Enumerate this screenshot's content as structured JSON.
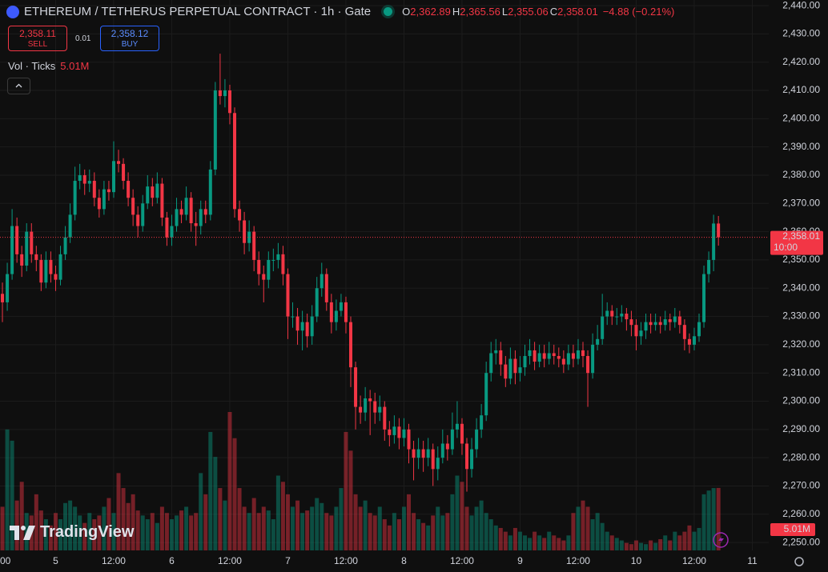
{
  "chart_data": {
    "type": "candlestick",
    "title": "ETHEREUM / TETHERUS PERPETUAL CONTRACT · 1h · Gate",
    "ohlc_legend": [
      {
        "key": "O",
        "value": "2,362.89"
      },
      {
        "key": "H",
        "value": "2,365.56"
      },
      {
        "key": "L",
        "value": "2,355.06"
      },
      {
        "key": "C",
        "value": "2,358.01"
      }
    ],
    "change": "−4.88 (−0.21%)",
    "trade": {
      "sell_price": "2,358.11",
      "sell": "SELL",
      "spread": "0.01",
      "buy_price": "2,358.12",
      "buy": "BUY"
    },
    "volume_indicator": {
      "title": "Vol · Ticks",
      "value": "5.01M"
    },
    "branding": "TradingView",
    "up_color": "#089981",
    "down_color": "#f23645",
    "grid": true,
    "open": [
      2338,
      2335,
      2345,
      2362,
      2352,
      2348,
      2360,
      2352,
      2350,
      2342,
      2350,
      2345,
      2343,
      2352,
      2358,
      2366,
      2378,
      2380,
      2377,
      2378,
      2372,
      2368,
      2375,
      2374,
      2385,
      2384,
      2378,
      2372,
      2366,
      2362,
      2370,
      2376,
      2372,
      2377,
      2365,
      2358,
      2362,
      2368,
      2366,
      2372,
      2363,
      2362,
      2368,
      2366,
      2382,
      2410,
      2408,
      2410,
      2402,
      2368,
      2364,
      2356,
      2360,
      2350,
      2345,
      2343,
      2350,
      2350,
      2352,
      2345,
      2330,
      2330,
      2325,
      2328,
      2323,
      2330,
      2340,
      2345,
      2335,
      2328,
      2332,
      2335,
      2328,
      2312,
      2298,
      2296,
      2301,
      2300,
      2296,
      2298,
      2290,
      2288,
      2291,
      2287,
      2290,
      2283,
      2280,
      2283,
      2280,
      2283,
      2276,
      2280,
      2285,
      2283,
      2290,
      2292,
      2285,
      2276,
      2283,
      2290,
      2295,
      2310,
      2317,
      2318,
      2313,
      2308,
      2315,
      2310,
      2312,
      2316,
      2318,
      2314,
      2317,
      2315,
      2317,
      2316,
      2315,
      2313,
      2317,
      2315,
      2318,
      2316,
      2310,
      2320,
      2322,
      2330,
      2332,
      2330,
      2330,
      2331,
      2329,
      2327,
      2323,
      2325,
      2328,
      2327,
      2328,
      2327,
      2329,
      2328,
      2330,
      2327,
      2322,
      2320,
      2323,
      2328,
      2345,
      2350,
      2362.89
    ],
    "high": [
      2342,
      2349,
      2368,
      2365,
      2355,
      2363,
      2363,
      2355,
      2352,
      2353,
      2353,
      2348,
      2355,
      2362,
      2370,
      2383,
      2384,
      2382,
      2382,
      2381,
      2375,
      2378,
      2378,
      2392,
      2389,
      2386,
      2381,
      2375,
      2369,
      2373,
      2380,
      2379,
      2381,
      2379,
      2367,
      2366,
      2372,
      2371,
      2376,
      2374,
      2367,
      2371,
      2371,
      2385,
      2413,
      2423,
      2414,
      2412,
      2404,
      2371,
      2367,
      2364,
      2362,
      2353,
      2348,
      2353,
      2354,
      2356,
      2355,
      2347,
      2335,
      2333,
      2332,
      2331,
      2334,
      2344,
      2349,
      2347,
      2338,
      2336,
      2338,
      2337,
      2330,
      2314,
      2302,
      2305,
      2304,
      2303,
      2302,
      2300,
      2293,
      2295,
      2294,
      2294,
      2292,
      2286,
      2287,
      2286,
      2287,
      2285,
      2284,
      2290,
      2288,
      2296,
      2300,
      2294,
      2287,
      2287,
      2294,
      2299,
      2314,
      2321,
      2322,
      2321,
      2316,
      2319,
      2318,
      2316,
      2320,
      2322,
      2321,
      2320,
      2320,
      2321,
      2320,
      2319,
      2318,
      2320,
      2320,
      2322,
      2321,
      2318,
      2324,
      2327,
      2338,
      2335,
      2334,
      2333,
      2334,
      2333,
      2332,
      2329,
      2328,
      2331,
      2331,
      2331,
      2330,
      2332,
      2331,
      2333,
      2332,
      2329,
      2324,
      2326,
      2331,
      2348,
      2353,
      2366,
      2365.56
    ],
    "low": [
      2328,
      2332,
      2343,
      2349,
      2344,
      2346,
      2349,
      2346,
      2339,
      2340,
      2342,
      2339,
      2341,
      2350,
      2356,
      2364,
      2375,
      2373,
      2374,
      2369,
      2365,
      2366,
      2371,
      2372,
      2381,
      2375,
      2369,
      2362,
      2358,
      2360,
      2368,
      2369,
      2370,
      2362,
      2355,
      2355,
      2360,
      2363,
      2364,
      2360,
      2355,
      2359,
      2363,
      2364,
      2380,
      2405,
      2404,
      2398,
      2365,
      2360,
      2352,
      2353,
      2346,
      2341,
      2335,
      2340,
      2346,
      2347,
      2341,
      2322,
      2326,
      2320,
      2318,
      2319,
      2320,
      2328,
      2337,
      2332,
      2324,
      2325,
      2330,
      2324,
      2305,
      2290,
      2292,
      2293,
      2288,
      2292,
      2293,
      2286,
      2284,
      2285,
      2283,
      2284,
      2278,
      2272,
      2276,
      2275,
      2277,
      2270,
      2272,
      2278,
      2279,
      2281,
      2287,
      2281,
      2268,
      2273,
      2280,
      2287,
      2293,
      2307,
      2313,
      2309,
      2305,
      2306,
      2306,
      2307,
      2309,
      2313,
      2311,
      2312,
      2312,
      2313,
      2313,
      2312,
      2310,
      2311,
      2312,
      2313,
      2312,
      2298,
      2308,
      2318,
      2320,
      2327,
      2327,
      2327,
      2328,
      2325,
      2323,
      2318,
      2320,
      2322,
      2324,
      2325,
      2324,
      2325,
      2325,
      2326,
      2324,
      2318,
      2317,
      2318,
      2321,
      2326,
      2342,
      2346,
      2355.06
    ],
    "close": [
      2335,
      2345,
      2362,
      2352,
      2348,
      2360,
      2352,
      2350,
      2342,
      2350,
      2345,
      2343,
      2352,
      2358,
      2366,
      2378,
      2380,
      2377,
      2378,
      2372,
      2368,
      2375,
      2374,
      2385,
      2384,
      2378,
      2372,
      2366,
      2362,
      2370,
      2376,
      2372,
      2377,
      2365,
      2358,
      2362,
      2368,
      2366,
      2372,
      2363,
      2362,
      2368,
      2366,
      2382,
      2410,
      2408,
      2410,
      2402,
      2368,
      2364,
      2356,
      2360,
      2350,
      2345,
      2343,
      2350,
      2350,
      2352,
      2345,
      2330,
      2330,
      2325,
      2328,
      2323,
      2330,
      2340,
      2345,
      2335,
      2328,
      2332,
      2335,
      2328,
      2312,
      2298,
      2296,
      2301,
      2300,
      2296,
      2298,
      2290,
      2288,
      2291,
      2287,
      2290,
      2283,
      2280,
      2283,
      2280,
      2283,
      2276,
      2280,
      2285,
      2283,
      2290,
      2292,
      2285,
      2276,
      2283,
      2290,
      2295,
      2310,
      2317,
      2318,
      2313,
      2308,
      2315,
      2310,
      2312,
      2316,
      2318,
      2314,
      2317,
      2315,
      2317,
      2316,
      2315,
      2313,
      2317,
      2315,
      2318,
      2316,
      2310,
      2320,
      2322,
      2330,
      2332,
      2330,
      2330,
      2331,
      2329,
      2327,
      2323,
      2325,
      2328,
      2327,
      2328,
      2327,
      2329,
      2328,
      2330,
      2327,
      2322,
      2320,
      2323,
      2328,
      2345,
      2350,
      2362.89,
      2358.01
    ],
    "volume": [
      3500000,
      9700000,
      8800000,
      4000000,
      5500000,
      3000000,
      2800000,
      4500000,
      3200000,
      2500000,
      2000000,
      3000000,
      2500000,
      3800000,
      4000000,
      3500000,
      2800000,
      2200000,
      3000000,
      2500000,
      2800000,
      3500000,
      4200000,
      3000000,
      6200000,
      5000000,
      3800000,
      4500000,
      3200000,
      2800000,
      2500000,
      3000000,
      2200000,
      3500000,
      3000000,
      2500000,
      2800000,
      3200000,
      3500000,
      2800000,
      3000000,
      6200000,
      4500000,
      9500000,
      7500000,
      5000000,
      4000000,
      11100000,
      9000000,
      5000000,
      3500000,
      3000000,
      4200000,
      3000000,
      3500000,
      3200000,
      2500000,
      6000000,
      5500000,
      4500000,
      3500000,
      4000000,
      3000000,
      3200000,
      3500000,
      4200000,
      3800000,
      3000000,
      2800000,
      3500000,
      5000000,
      9500000,
      8000000,
      4500000,
      3500000,
      4000000,
      3000000,
      2800000,
      3500000,
      2500000,
      2000000,
      3000000,
      2500000,
      3500000,
      4500000,
      3000000,
      2500000,
      2200000,
      2000000,
      2800000,
      3500000,
      2800000,
      3000000,
      4500000,
      6000000,
      5500000,
      3500000,
      2800000,
      3500000,
      4000000,
      3000000,
      2500000,
      2000000,
      1800000,
      1500000,
      1200000,
      1800000,
      1500000,
      1200000,
      1000000,
      1500000,
      1200000,
      1000000,
      1500000,
      1200000,
      1000000,
      800000,
      1200000,
      3000000,
      3500000,
      4000000,
      3500000,
      2500000,
      3000000,
      2200000,
      1500000,
      1200000,
      1000000,
      800000,
      600000,
      500000,
      800000,
      600000,
      500000,
      800000,
      600000,
      900000,
      1200000,
      800000,
      1500000,
      1200000,
      1500000,
      2000000,
      1500000,
      1800000,
      4500000,
      4800000,
      5000000,
      5010000
    ],
    "last_price": {
      "value": 2358.01,
      "label": "2,358.01",
      "countdown": "10:00"
    },
    "xlim": [
      -0.5,
      158.4
    ],
    "xticks": [
      {
        "value": -1,
        "label": "00"
      },
      {
        "value": 11,
        "label": "5"
      },
      {
        "value": 23,
        "label": "12:00"
      },
      {
        "value": 35,
        "label": "6"
      },
      {
        "value": 47,
        "label": "12:00"
      },
      {
        "value": 59,
        "label": "7"
      },
      {
        "value": 71,
        "label": "12:00"
      },
      {
        "value": 83,
        "label": "8"
      },
      {
        "value": 95,
        "label": "12:00"
      },
      {
        "value": 107,
        "label": "9"
      },
      {
        "value": 119,
        "label": "12:00"
      },
      {
        "value": 131,
        "label": "10"
      },
      {
        "value": 143,
        "label": "12:00"
      },
      {
        "value": 155,
        "label": "11"
      }
    ],
    "ylim": [
      2247.2,
      2442
    ],
    "yticks": [
      {
        "value": 2250,
        "label": "2,250.00"
      },
      {
        "value": 2260,
        "label": "2,260.00"
      },
      {
        "value": 2270,
        "label": "2,270.00"
      },
      {
        "value": 2280,
        "label": "2,280.00"
      },
      {
        "value": 2290,
        "label": "2,290.00"
      },
      {
        "value": 2300,
        "label": "2,300.00"
      },
      {
        "value": 2310,
        "label": "2,310.00"
      },
      {
        "value": 2320,
        "label": "2,320.00"
      },
      {
        "value": 2330,
        "label": "2,330.00"
      },
      {
        "value": 2340,
        "label": "2,340.00"
      },
      {
        "value": 2350,
        "label": "2,350.00"
      },
      {
        "value": 2360,
        "label": "2,360.00"
      },
      {
        "value": 2370,
        "label": "2,370.00"
      },
      {
        "value": 2380,
        "label": "2,380.00"
      },
      {
        "value": 2390,
        "label": "2,390.00"
      },
      {
        "value": 2400,
        "label": "2,400.00"
      },
      {
        "value": 2410,
        "label": "2,410.00"
      },
      {
        "value": 2420,
        "label": "2,420.00"
      },
      {
        "value": 2430,
        "label": "2,430.00"
      },
      {
        "value": 2440,
        "label": "2,440.00"
      }
    ]
  }
}
